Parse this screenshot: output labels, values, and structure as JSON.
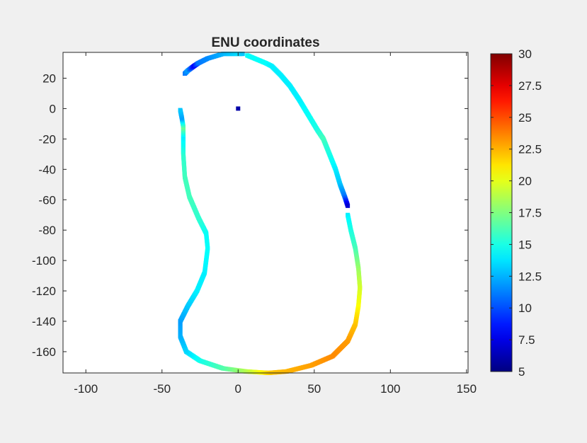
{
  "chart_data": {
    "type": "scatter",
    "title": "ENU coordinates",
    "xlabel": "",
    "ylabel": "",
    "xlim": [
      -115,
      151
    ],
    "ylim": [
      -174,
      37
    ],
    "xticks": [
      -100,
      -50,
      0,
      50,
      100,
      150
    ],
    "yticks": [
      20,
      0,
      -20,
      -40,
      -60,
      -80,
      -100,
      -120,
      -140,
      -160
    ],
    "colorbar": {
      "colormap": "jet",
      "clim": [
        5,
        30
      ],
      "ticks": [
        5,
        7.5,
        10,
        12.5,
        15,
        17.5,
        20,
        22.5,
        25,
        27.5,
        30
      ],
      "tick_labels": [
        "5",
        "7.5",
        "10",
        "12.5",
        "15",
        "17.5",
        "20",
        "22.5",
        "25",
        "27.5",
        "30"
      ]
    },
    "series": [
      {
        "points": [
          [
            6,
            35,
            14.5
          ],
          [
            18,
            30,
            14.5
          ],
          [
            22,
            28,
            14
          ],
          [
            28,
            22,
            14
          ],
          [
            34,
            15,
            14
          ],
          [
            40,
            6,
            14
          ],
          [
            46,
            -4,
            14.5
          ],
          [
            52,
            -14,
            15
          ],
          [
            56,
            -20,
            16
          ],
          [
            60,
            -30,
            15
          ],
          [
            64,
            -40,
            14
          ],
          [
            67,
            -50,
            13
          ],
          [
            70,
            -58,
            11
          ],
          [
            72,
            -64,
            7
          ],
          [
            72,
            -70,
            14
          ],
          [
            74,
            -80,
            15
          ],
          [
            77,
            -92,
            16
          ],
          [
            79,
            -105,
            18
          ],
          [
            80,
            -118,
            19.5
          ],
          [
            79,
            -130,
            20.5
          ],
          [
            77,
            -142,
            22
          ],
          [
            72,
            -153,
            23
          ],
          [
            62,
            -163,
            23.5
          ],
          [
            48,
            -169,
            23
          ],
          [
            32,
            -173,
            22.5
          ],
          [
            20,
            -174,
            22
          ],
          [
            5,
            -173,
            19
          ],
          [
            -10,
            -171,
            16.5
          ],
          [
            -25,
            -166,
            15
          ],
          [
            -34,
            -160,
            13.5
          ],
          [
            -38,
            -150,
            12.5
          ],
          [
            -38,
            -140,
            12
          ],
          [
            -33,
            -130,
            13
          ],
          [
            -27,
            -120,
            14
          ],
          [
            -22,
            -108,
            14
          ],
          [
            -20,
            -92,
            14.5
          ],
          [
            -21,
            -82,
            14.5
          ],
          [
            -26,
            -72,
            15.5
          ],
          [
            -32,
            -58,
            16
          ],
          [
            -35,
            -45,
            16
          ],
          [
            -36,
            -30,
            15.5
          ],
          [
            -36,
            -18,
            14
          ],
          [
            -36,
            -12,
            17
          ],
          [
            -37,
            -6,
            12
          ],
          [
            -38,
            -1,
            13
          ],
          [
            -35,
            23,
            11
          ],
          [
            -33,
            25,
            12
          ],
          [
            -29,
            28,
            8
          ],
          [
            -26,
            30,
            11
          ],
          [
            -20,
            33,
            11.5
          ],
          [
            -10,
            36,
            12.5
          ],
          [
            0,
            36,
            13.5
          ],
          [
            3,
            36,
            13
          ],
          [
            0,
            0,
            6
          ]
        ]
      }
    ]
  }
}
